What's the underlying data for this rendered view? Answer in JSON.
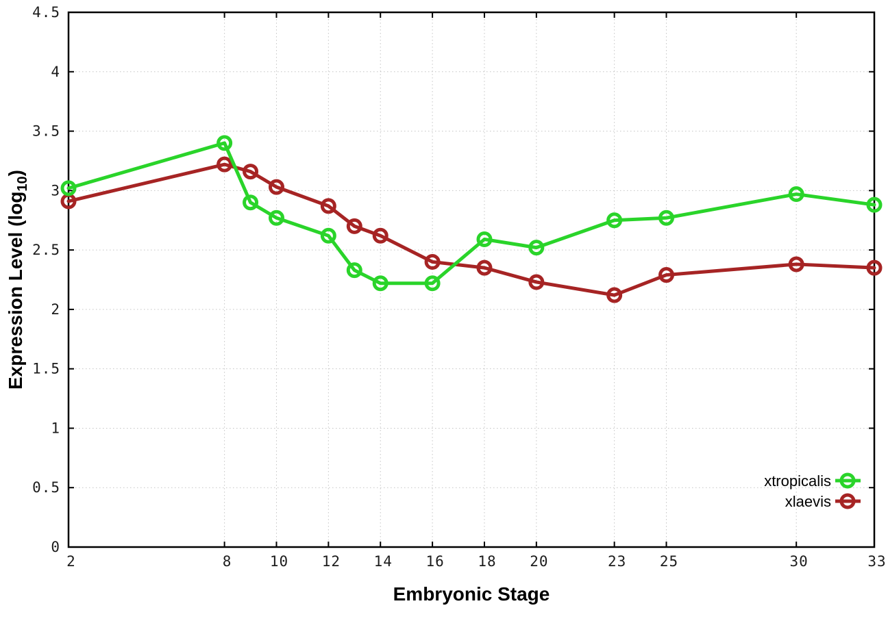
{
  "chart_data": {
    "type": "line",
    "title": "",
    "xlabel": "Embryonic Stage",
    "ylabel": {
      "prefix": "Expression Level (log",
      "sub": "10",
      "suffix": ")"
    },
    "x": [
      2,
      8,
      9,
      10,
      12,
      13,
      14,
      16,
      18,
      20,
      23,
      25,
      30,
      33
    ],
    "series": [
      {
        "name": "xtropicalis",
        "color": "#2ad42a",
        "values": [
          3.02,
          3.4,
          2.9,
          2.77,
          2.62,
          2.33,
          2.22,
          2.22,
          2.59,
          2.52,
          2.75,
          2.77,
          2.97,
          2.88
        ]
      },
      {
        "name": "xlaevis",
        "color": "#a62424",
        "values": [
          2.91,
          3.22,
          3.16,
          3.03,
          2.87,
          2.7,
          2.62,
          2.4,
          2.35,
          2.23,
          2.12,
          2.29,
          2.38,
          2.35
        ]
      }
    ],
    "xlim": [
      2,
      33
    ],
    "ylim": [
      0,
      4.5
    ],
    "x_ticks": [
      2,
      8,
      10,
      12,
      14,
      16,
      18,
      20,
      23,
      25,
      30,
      33
    ],
    "x_tick_labels": [
      "2",
      "8",
      "10",
      "12",
      "14",
      "16",
      "18",
      "20",
      "23",
      "25",
      "30",
      "33"
    ],
    "y_ticks": [
      0,
      0.5,
      1,
      1.5,
      2,
      2.5,
      3,
      3.5,
      4,
      4.5
    ],
    "y_tick_labels": [
      "0",
      "0.5",
      "1",
      "1.5",
      "2",
      "2.5",
      "3",
      "3.5",
      "4",
      "4.5"
    ],
    "grid": true,
    "grid_color": "#c4c4c4",
    "axis_color": "#000000",
    "background_color": "#ffffff",
    "legend_position": "bottom-right",
    "marker": "open-circle",
    "legend": [
      "xtropicalis",
      "xlaevis"
    ]
  }
}
